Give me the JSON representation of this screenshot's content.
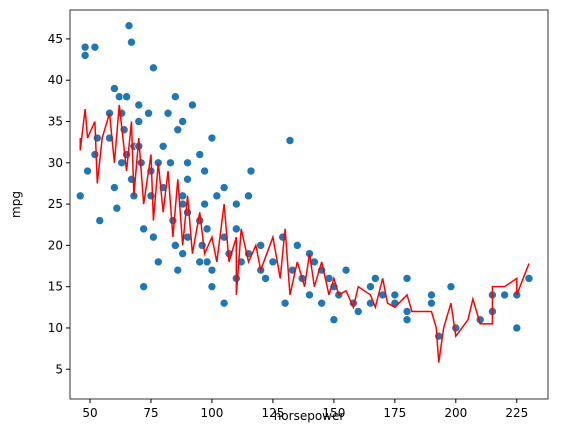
{
  "chart_data": {
    "type": "scatter",
    "xlabel": "horsepower",
    "ylabel": "mpg",
    "xlim": [
      41.8,
      237.8
    ],
    "ylim": [
      1.4,
      48.5
    ],
    "xticks": [
      50,
      75,
      100,
      125,
      150,
      175,
      200,
      225
    ],
    "yticks": [
      5,
      10,
      15,
      20,
      25,
      30,
      35,
      40,
      45
    ],
    "series": [
      {
        "type": "scatter",
        "color": "#1f77b4",
        "x": [
          46,
          48,
          48,
          49,
          52,
          52,
          53,
          54,
          58,
          60,
          60,
          61,
          62,
          63,
          64,
          65,
          65,
          66,
          67,
          68,
          68,
          70,
          70,
          71,
          72,
          72,
          74,
          75,
          75,
          76,
          76,
          78,
          78,
          80,
          80,
          82,
          84,
          85,
          85,
          86,
          88,
          88,
          88,
          90,
          90,
          90,
          92,
          95,
          96,
          97,
          98,
          100,
          100,
          100,
          102,
          105,
          105,
          107,
          110,
          110,
          110,
          112,
          115,
          115,
          116,
          120,
          120,
          122,
          125,
          129,
          130,
          132,
          133,
          135,
          137,
          140,
          140,
          142,
          145,
          145,
          148,
          150,
          150,
          152,
          155,
          158,
          160,
          165,
          165,
          167,
          170,
          175,
          175,
          180,
          180,
          180,
          190,
          190,
          193,
          198,
          200,
          210,
          215,
          215,
          220,
          225,
          225,
          230,
          105,
          88,
          86,
          95,
          98,
          67,
          70,
          63,
          58,
          95,
          90,
          83,
          97
        ],
        "values": [
          26,
          44,
          43,
          29,
          44,
          31,
          33,
          23,
          36,
          39,
          27,
          24.5,
          38,
          36,
          34,
          38,
          31,
          46.6,
          44.6,
          32,
          26,
          35,
          32,
          30,
          15,
          22,
          36,
          29,
          26,
          41.5,
          21,
          30,
          18,
          32,
          27,
          36,
          23,
          38,
          20,
          34,
          35,
          26,
          19,
          30,
          24,
          21,
          37,
          23,
          20,
          29,
          18,
          33,
          15,
          17,
          26,
          27,
          21,
          19,
          22,
          16,
          25,
          18,
          19,
          26,
          29,
          20,
          17,
          16,
          18,
          21,
          13,
          32.7,
          17,
          20,
          16,
          19,
          14,
          18,
          17,
          13,
          16,
          15,
          11,
          14,
          17,
          13,
          12,
          13,
          15,
          16,
          14,
          13,
          14,
          16,
          12,
          11,
          14,
          13,
          9,
          15,
          10,
          11,
          12,
          14,
          14,
          14,
          10,
          16,
          13,
          25,
          17,
          18,
          22,
          28,
          37,
          30,
          33,
          31,
          28,
          30,
          25
        ]
      },
      {
        "type": "line",
        "color": "#ff0000",
        "x": [
          46,
          46,
          48,
          49,
          52,
          53,
          55,
          58,
          60,
          62,
          65,
          67,
          68,
          70,
          72,
          75,
          76,
          78,
          80,
          82,
          84,
          86,
          88,
          90,
          92,
          95,
          97,
          100,
          102,
          105,
          107,
          110,
          110,
          112,
          115,
          118,
          120,
          125,
          128,
          130,
          132,
          135,
          138,
          140,
          142,
          145,
          148,
          150,
          152,
          155,
          158,
          160,
          165,
          167,
          170,
          172,
          175,
          180,
          182,
          190,
          192,
          193,
          195,
          198,
          200,
          205,
          207,
          210,
          215,
          215,
          220,
          225,
          225,
          230
        ],
        "values": [
          33,
          31.5,
          36.5,
          33,
          35,
          27.5,
          33,
          36,
          30,
          37,
          29,
          35,
          26,
          33,
          25,
          31,
          23,
          30,
          24,
          29,
          21,
          28,
          20,
          26,
          19,
          24,
          19,
          21,
          18,
          25,
          18,
          21,
          14,
          22,
          18,
          20,
          17,
          21,
          16,
          22,
          14,
          18,
          15,
          19,
          15,
          18,
          14,
          16,
          14,
          14.5,
          12.5,
          15,
          14,
          12.5,
          16,
          13,
          12.5,
          14,
          12,
          12,
          10,
          5.8,
          10,
          13,
          9,
          11,
          13.5,
          10.5,
          10.5,
          15,
          15,
          16,
          14,
          17.8
        ]
      }
    ]
  }
}
